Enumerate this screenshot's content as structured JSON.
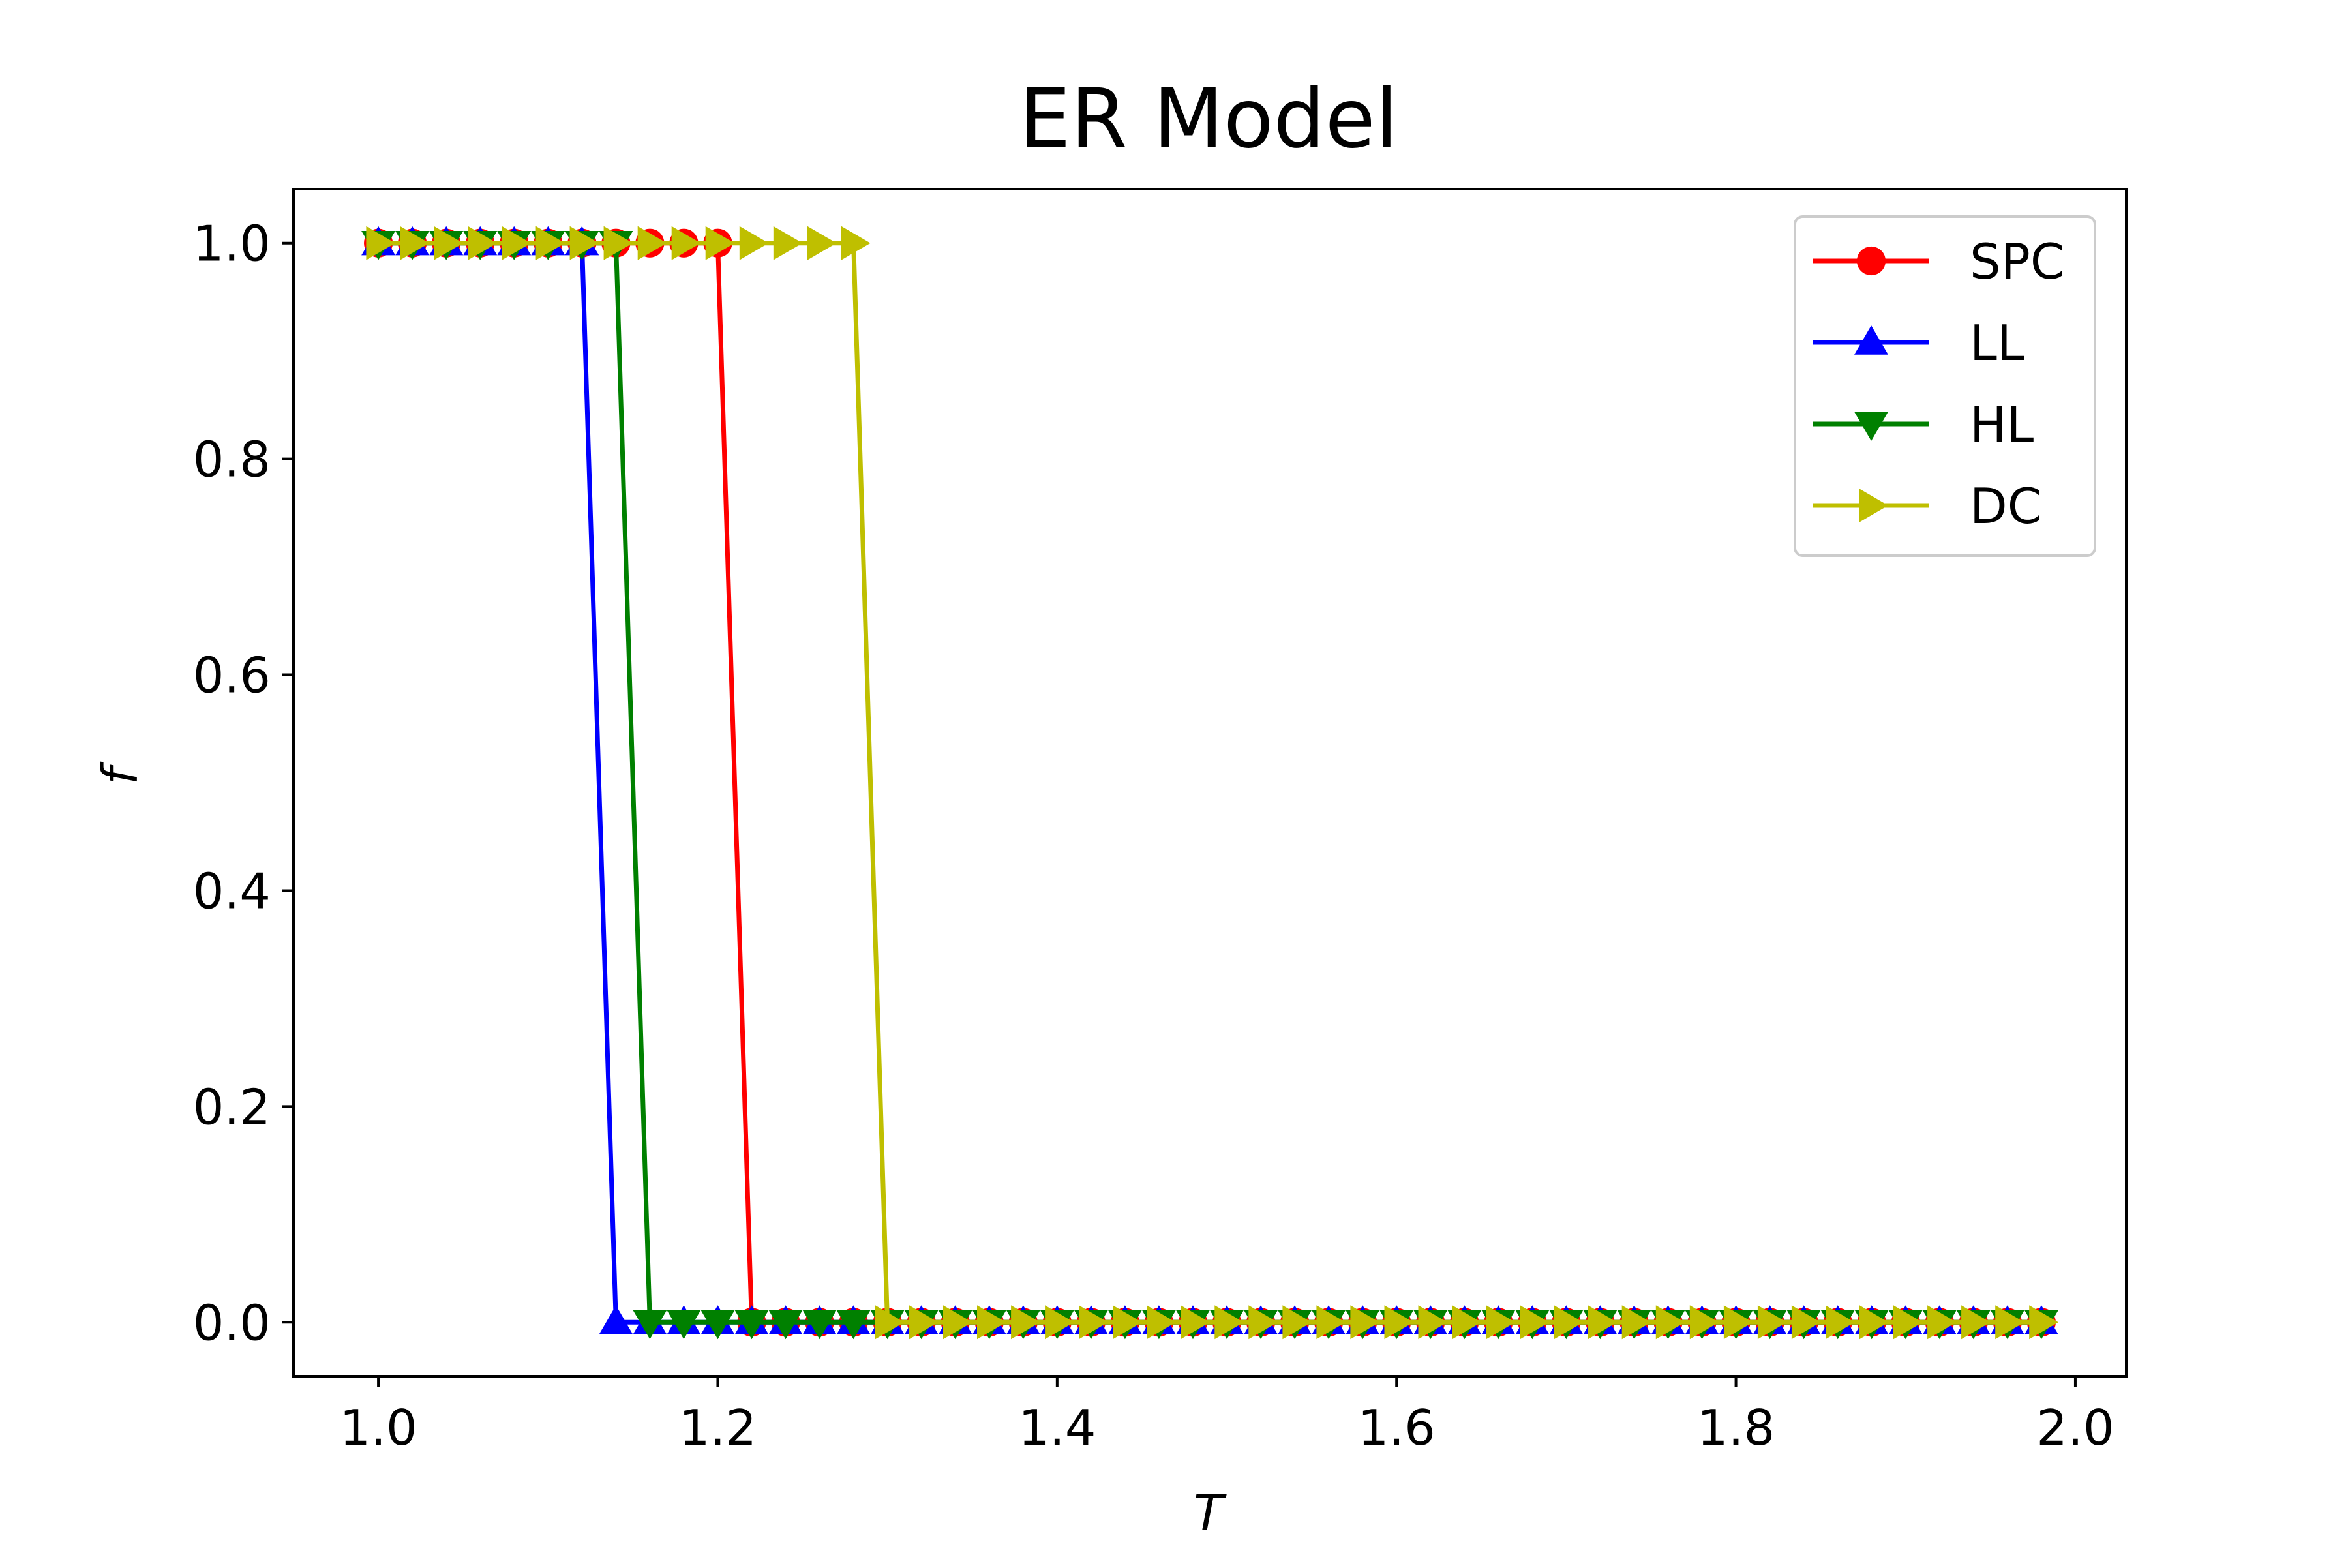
{
  "chart_data": {
    "type": "line",
    "title": "ER Model",
    "xlabel": "T",
    "ylabel": "f",
    "xlim": [
      0.95,
      2.03
    ],
    "ylim": [
      -0.05,
      1.05
    ],
    "xticks": [
      1.0,
      1.2,
      1.4,
      1.6,
      1.8,
      2.0
    ],
    "xtick_labels": [
      "1.0",
      "1.2",
      "1.4",
      "1.6",
      "1.8",
      "2.0"
    ],
    "yticks": [
      0.0,
      0.2,
      0.4,
      0.6,
      0.8,
      1.0
    ],
    "ytick_labels": [
      "0.0",
      "0.2",
      "0.4",
      "0.6",
      "0.8",
      "1.0"
    ],
    "grid": false,
    "legend_position": "top-right",
    "x": [
      1.0,
      1.02,
      1.04,
      1.06,
      1.08,
      1.1,
      1.12,
      1.14,
      1.16,
      1.18,
      1.2,
      1.22,
      1.24,
      1.26,
      1.28,
      1.3,
      1.32,
      1.34,
      1.36,
      1.38,
      1.4,
      1.42,
      1.44,
      1.46,
      1.48,
      1.5,
      1.52,
      1.54,
      1.56,
      1.58,
      1.6,
      1.62,
      1.64,
      1.66,
      1.68,
      1.7,
      1.72,
      1.74,
      1.76,
      1.78,
      1.8,
      1.82,
      1.84,
      1.86,
      1.88,
      1.9,
      1.92,
      1.94,
      1.96,
      1.98
    ],
    "series": [
      {
        "name": "SPC",
        "color": "#ff0000",
        "marker": "circle",
        "values": [
          1,
          1,
          1,
          1,
          1,
          1,
          1,
          1,
          1,
          1,
          1,
          0,
          0,
          0,
          0,
          0,
          0,
          0,
          0,
          0,
          0,
          0,
          0,
          0,
          0,
          0,
          0,
          0,
          0,
          0,
          0,
          0,
          0,
          0,
          0,
          0,
          0,
          0,
          0,
          0,
          0,
          0,
          0,
          0,
          0,
          0,
          0,
          0,
          0,
          0
        ]
      },
      {
        "name": "LL",
        "color": "#0000ff",
        "marker": "triangle-up",
        "values": [
          1,
          1,
          1,
          1,
          1,
          1,
          1,
          0,
          0,
          0,
          0,
          0,
          0,
          0,
          0,
          0,
          0,
          0,
          0,
          0,
          0,
          0,
          0,
          0,
          0,
          0,
          0,
          0,
          0,
          0,
          0,
          0,
          0,
          0,
          0,
          0,
          0,
          0,
          0,
          0,
          0,
          0,
          0,
          0,
          0,
          0,
          0,
          0,
          0,
          0
        ]
      },
      {
        "name": "HL",
        "color": "#008000",
        "marker": "triangle-down",
        "values": [
          1,
          1,
          1,
          1,
          1,
          1,
          1,
          1,
          0,
          0,
          0,
          0,
          0,
          0,
          0,
          0,
          0,
          0,
          0,
          0,
          0,
          0,
          0,
          0,
          0,
          0,
          0,
          0,
          0,
          0,
          0,
          0,
          0,
          0,
          0,
          0,
          0,
          0,
          0,
          0,
          0,
          0,
          0,
          0,
          0,
          0,
          0,
          0,
          0,
          0
        ]
      },
      {
        "name": "DC",
        "color": "#bfbf00",
        "marker": "triangle-right",
        "values": [
          1,
          1,
          1,
          1,
          1,
          1,
          1,
          1,
          1,
          1,
          1,
          1,
          1,
          1,
          1,
          0,
          0,
          0,
          0,
          0,
          0,
          0,
          0,
          0,
          0,
          0,
          0,
          0,
          0,
          0,
          0,
          0,
          0,
          0,
          0,
          0,
          0,
          0,
          0,
          0,
          0,
          0,
          0,
          0,
          0,
          0,
          0,
          0,
          0,
          0
        ]
      }
    ]
  }
}
